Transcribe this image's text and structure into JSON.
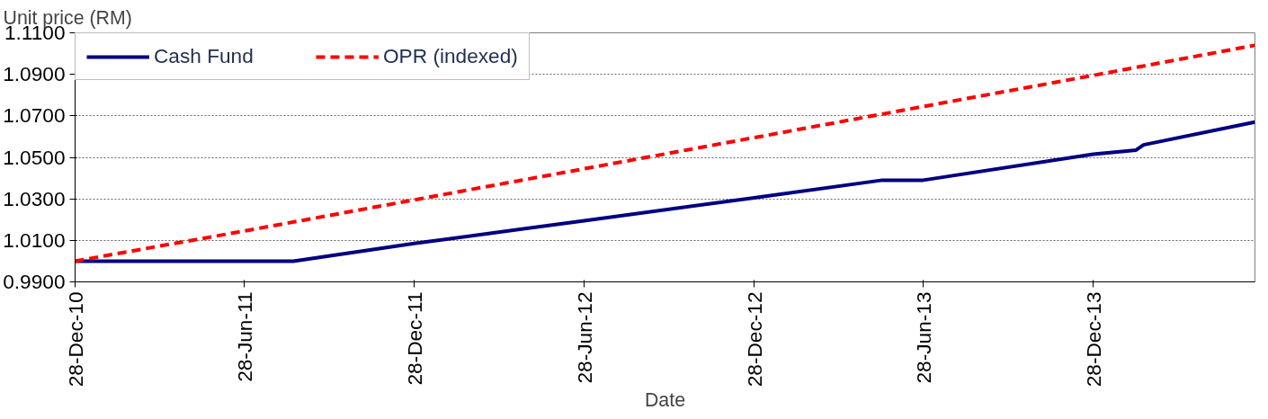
{
  "chart_data": {
    "type": "line",
    "ylabel": "Unit price (RM)",
    "xlabel": "Date",
    "xlim": [
      "2010-12-28",
      "2014-06-20"
    ],
    "xticks": [
      {
        "value": "2010-12-28",
        "label": "28-Dec-10"
      },
      {
        "value": "2011-06-28",
        "label": "28-Jun-11"
      },
      {
        "value": "2011-12-28",
        "label": "28-Dec-11"
      },
      {
        "value": "2012-06-28",
        "label": "28-Jun-12"
      },
      {
        "value": "2012-12-28",
        "label": "28-Dec-12"
      },
      {
        "value": "2013-06-28",
        "label": "28-Jun-13"
      },
      {
        "value": "2013-12-28",
        "label": "28-Dec-13"
      }
    ],
    "ylim": [
      0.99,
      1.11
    ],
    "yticks": [
      {
        "value": 0.99,
        "label": "0.9900"
      },
      {
        "value": 1.01,
        "label": "1.0100"
      },
      {
        "value": 1.03,
        "label": "1.0300"
      },
      {
        "value": 1.05,
        "label": "1.0500"
      },
      {
        "value": 1.07,
        "label": "1.0700"
      },
      {
        "value": 1.09,
        "label": "1.0900"
      },
      {
        "value": 1.11,
        "label": "1.1100"
      }
    ],
    "series": [
      {
        "name": "Cash Fund",
        "color": "#000080",
        "line_style": "solid",
        "x": [
          "2010-12-28",
          "2011-08-20",
          "2011-12-28",
          "2012-06-28",
          "2012-12-28",
          "2013-05-15",
          "2013-06-28",
          "2013-12-28",
          "2014-02-12",
          "2014-02-20",
          "2014-06-20"
        ],
        "values": [
          1.0,
          1.0,
          1.0085,
          1.0195,
          1.0305,
          1.039,
          1.039,
          1.0515,
          1.0535,
          1.056,
          1.067
        ]
      },
      {
        "name": "OPR (indexed)",
        "color": "#ff0000",
        "line_style": "dashed",
        "x": [
          "2010-12-28",
          "2011-06-28",
          "2011-12-28",
          "2012-06-28",
          "2012-12-28",
          "2013-06-28",
          "2013-12-28",
          "2014-06-20"
        ],
        "values": [
          1.0,
          1.0145,
          1.0295,
          1.0445,
          1.0595,
          1.0745,
          1.0895,
          1.104
        ]
      }
    ],
    "grid": "y",
    "legend": "top left",
    "marker": "none"
  }
}
